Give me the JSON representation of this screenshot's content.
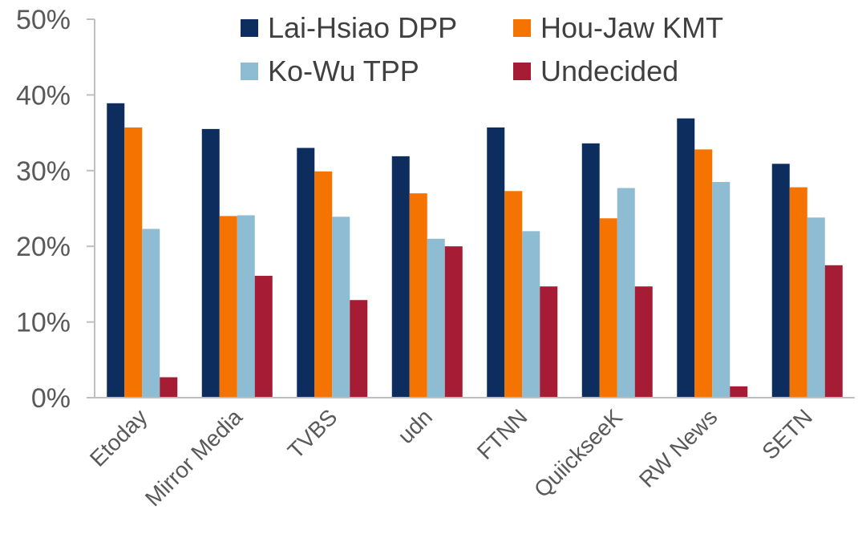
{
  "chart_data": {
    "type": "bar",
    "categories": [
      "Etoday",
      "Mirror Media",
      "TVBS",
      "udn",
      "FTNN",
      "QuiickseeK",
      "RW News",
      "SETN"
    ],
    "series": [
      {
        "name": "Lai-Hsiao DPP",
        "color": "#0c2d5e",
        "values": [
          38.9,
          35.5,
          33.0,
          31.9,
          35.7,
          33.6,
          36.9,
          30.9
        ]
      },
      {
        "name": "Hou-Jaw KMT",
        "color": "#f57300",
        "values": [
          35.7,
          24.0,
          29.9,
          27.0,
          27.3,
          23.7,
          32.8,
          27.8
        ]
      },
      {
        "name": "Ko-Wu TPP",
        "color": "#8ebcd2",
        "values": [
          22.3,
          24.1,
          23.9,
          21.0,
          22.0,
          27.7,
          28.5,
          23.8
        ]
      },
      {
        "name": "Undecided",
        "color": "#a61c35",
        "values": [
          2.7,
          16.1,
          12.9,
          20.0,
          14.7,
          14.7,
          1.5,
          17.5
        ]
      }
    ],
    "ylim": [
      0,
      50
    ],
    "yticks": [
      0,
      10,
      20,
      30,
      40,
      50
    ],
    "ytick_labels": [
      "0%",
      "10%",
      "20%",
      "30%",
      "40%",
      "50%"
    ],
    "title": "",
    "xlabel": "",
    "ylabel": "",
    "legend_position": "top",
    "grid": false
  }
}
